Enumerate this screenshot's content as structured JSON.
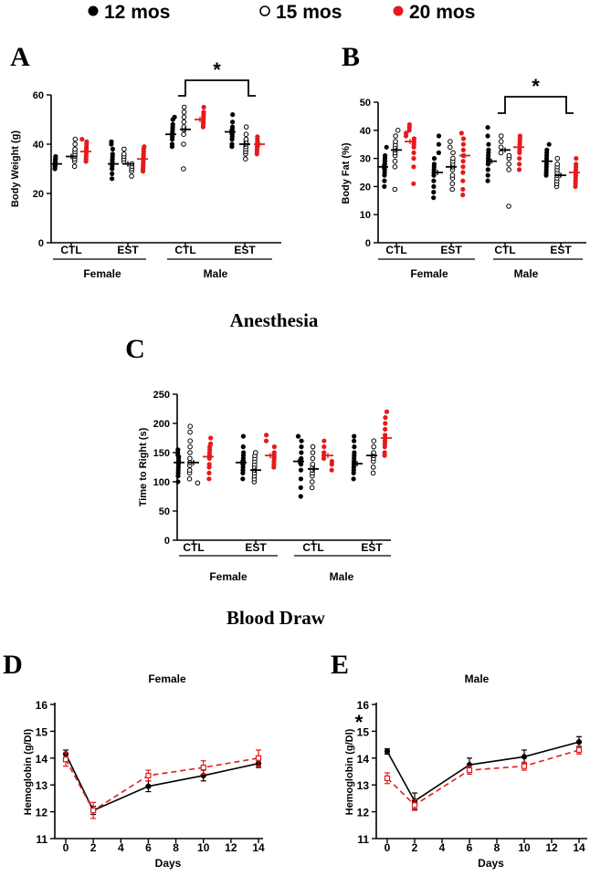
{
  "legend": {
    "items": [
      {
        "label": "12 mos",
        "marker": "filled-circle",
        "color": "#000000"
      },
      {
        "label": "15 mos",
        "marker": "open-circle",
        "color": "#000000"
      },
      {
        "label": "20 mos",
        "marker": "filled-circle",
        "color": "#e41a1c"
      }
    ]
  },
  "section_titles": {
    "anesthesia": "Anesthesia",
    "blood_draw": "Blood Draw"
  },
  "colors": {
    "age12": "#000000",
    "age15": "#000000",
    "age20": "#e41a1c"
  },
  "chart_data": [
    {
      "id": "A",
      "panel_label": "A",
      "type": "scatter",
      "ylabel": "Body  Weight (g)",
      "ylim": [
        0,
        60
      ],
      "yticks": [
        "0",
        "20",
        "40",
        "60"
      ],
      "groups": [
        "Female",
        "Male"
      ],
      "conditions": [
        "CTL",
        "EST"
      ],
      "significance": {
        "symbol": "*",
        "between": [
          "Male CTL",
          "Male EST"
        ]
      },
      "series": [
        {
          "name": "Female CTL",
          "means": [
            32,
            35,
            37
          ],
          "points": [
            [
              30,
              31,
              31,
              32,
              32,
              33,
              33,
              34,
              34,
              35
            ],
            [
              31,
              33,
              34,
              35,
              36,
              37,
              38,
              40,
              42
            ],
            [
              33,
              34,
              35,
              36,
              37,
              38,
              38,
              39,
              40,
              41,
              42
            ]
          ]
        },
        {
          "name": "Female EST",
          "means": [
            32,
            32,
            34
          ],
          "points": [
            [
              26,
              28,
              30,
              31,
              32,
              33,
              34,
              35,
              36,
              38,
              40,
              41
            ],
            [
              27,
              29,
              30,
              31,
              32,
              33,
              34,
              35,
              36,
              38
            ],
            [
              29,
              30,
              31,
              32,
              33,
              34,
              35,
              36,
              37,
              38,
              39
            ]
          ]
        },
        {
          "name": "Male CTL",
          "means": [
            44,
            46,
            50
          ],
          "points": [
            [
              39,
              40,
              42,
              43,
              44,
              45,
              46,
              47,
              48,
              50,
              51
            ],
            [
              30,
              40,
              44,
              46,
              47,
              49,
              51,
              53,
              55
            ],
            [
              47,
              48,
              49,
              50,
              51,
              52,
              53,
              55
            ]
          ]
        },
        {
          "name": "Male EST",
          "means": [
            45,
            40,
            40
          ],
          "points": [
            [
              39,
              40,
              42,
              43,
              44,
              45,
              46,
              47,
              49,
              52
            ],
            [
              34,
              36,
              37,
              38,
              39,
              40,
              41,
              42,
              44,
              47
            ],
            [
              36,
              37,
              38,
              39,
              40,
              41,
              42,
              43
            ]
          ]
        }
      ]
    },
    {
      "id": "B",
      "panel_label": "B",
      "type": "scatter",
      "ylabel": "Body Fat (%)",
      "ylim": [
        0,
        50
      ],
      "yticks": [
        "0",
        "10",
        "20",
        "30",
        "40",
        "50"
      ],
      "groups": [
        "Female",
        "Male"
      ],
      "conditions": [
        "CTL",
        "EST"
      ],
      "significance": {
        "symbol": "*",
        "between": [
          "Male CTL",
          "Male EST"
        ]
      },
      "series": [
        {
          "name": "Female CTL",
          "means": [
            27,
            33,
            36
          ],
          "points": [
            [
              20,
              22,
              24,
              25,
              26,
              27,
              28,
              29,
              30,
              31,
              34
            ],
            [
              19,
              27,
              29,
              31,
              32,
              33,
              34,
              35,
              36,
              38,
              40
            ],
            [
              21,
              27,
              30,
              32,
              34,
              35,
              36,
              37,
              38,
              39,
              40,
              41,
              42
            ]
          ]
        },
        {
          "name": "Female EST",
          "means": [
            25,
            27,
            31
          ],
          "points": [
            [
              16,
              18,
              20,
              22,
              24,
              25,
              26,
              27,
              28,
              30,
              32,
              35,
              38
            ],
            [
              19,
              21,
              23,
              24,
              26,
              27,
              28,
              29,
              30,
              32,
              34,
              36
            ],
            [
              17,
              19,
              22,
              25,
              27,
              29,
              31,
              33,
              35,
              37,
              39
            ]
          ]
        },
        {
          "name": "Male CTL",
          "means": [
            29,
            33,
            34
          ],
          "points": [
            [
              22,
              24,
              26,
              28,
              29,
              30,
              31,
              32,
              33,
              35,
              38,
              41
            ],
            [
              13,
              26,
              28,
              30,
              31,
              32,
              34,
              36,
              38
            ],
            [
              26,
              28,
              30,
              32,
              33,
              34,
              35,
              36,
              37,
              38
            ]
          ]
        },
        {
          "name": "Male EST",
          "means": [
            29,
            24,
            25
          ],
          "points": [
            [
              24,
              25,
              26,
              27,
              28,
              29,
              30,
              31,
              32,
              33,
              35
            ],
            [
              20,
              21,
              22,
              23,
              24,
              25,
              26,
              27,
              28,
              30
            ],
            [
              20,
              21,
              22,
              23,
              24,
              25,
              26,
              27,
              28,
              30
            ]
          ]
        }
      ]
    },
    {
      "id": "C",
      "panel_label": "C",
      "type": "scatter",
      "ylabel": "Time to Right  (s)",
      "ylim": [
        0,
        250
      ],
      "yticks": [
        "0",
        "50",
        "100",
        "150",
        "200",
        "250"
      ],
      "groups": [
        "Female",
        "Male"
      ],
      "conditions": [
        "CTL",
        "EST"
      ],
      "series": [
        {
          "name": "Female CTL",
          "means": [
            133,
            133,
            143
          ],
          "points": [
            [
              100,
              110,
              115,
              120,
              125,
              130,
              133,
              136,
              140,
              143,
              146,
              150,
              155
            ],
            [
              98,
              105,
              115,
              120,
              128,
              133,
              140,
              150,
              160,
              170,
              185,
              195
            ],
            [
              105,
              115,
              125,
              130,
              140,
              143,
              146,
              150,
              155,
              160,
              165,
              175
            ]
          ]
        },
        {
          "name": "Female EST",
          "means": [
            133,
            120,
            145
          ],
          "points": [
            [
              105,
              115,
              120,
              125,
              130,
              133,
              136,
              140,
              145,
              150,
              160,
              178
            ],
            [
              100,
              105,
              110,
              115,
              120,
              125,
              130,
              135,
              140,
              145,
              150
            ],
            [
              125,
              130,
              135,
              140,
              143,
              146,
              150,
              160,
              170,
              180
            ]
          ]
        },
        {
          "name": "Male CTL",
          "means": [
            135,
            122,
            145
          ],
          "points": [
            [
              75,
              90,
              105,
              120,
              130,
              135,
              140,
              150,
              160,
              170,
              178
            ],
            [
              90,
              100,
              110,
              115,
              120,
              125,
              130,
              140,
              150,
              160
            ],
            [
              120,
              130,
              135,
              140,
              145,
              150,
              160,
              170
            ]
          ]
        },
        {
          "name": "Male EST",
          "means": [
            131,
            145,
            175
          ],
          "points": [
            [
              105,
              115,
              120,
              125,
              130,
              135,
              140,
              145,
              150,
              160,
              170,
              178
            ],
            [
              115,
              125,
              135,
              140,
              145,
              150,
              160,
              170
            ],
            [
              145,
              150,
              160,
              165,
              170,
              175,
              180,
              190,
              200,
              210,
              220
            ]
          ]
        }
      ]
    },
    {
      "id": "D",
      "panel_label": "D",
      "type": "line",
      "title": "Female",
      "xlabel": "Days",
      "ylabel": "Hemoglobin (g/Dl)",
      "x": [
        0,
        2,
        6,
        10,
        14
      ],
      "xlim": [
        0,
        14
      ],
      "ylim": [
        11,
        16
      ],
      "xticks": [
        "0",
        "2",
        "4",
        "6",
        "8",
        "10",
        "12",
        "14"
      ],
      "yticks": [
        "11",
        "12",
        "13",
        "14",
        "15",
        "16"
      ],
      "series": [
        {
          "name": "12 mos",
          "color": "#000000",
          "style": "solid",
          "marker": "filled-circle",
          "values": [
            14.15,
            12.05,
            12.95,
            13.35,
            13.8
          ],
          "errors": [
            0.15,
            0.15,
            0.2,
            0.2,
            0.15
          ]
        },
        {
          "name": "20 mos",
          "color": "#e41a1c",
          "style": "dashed",
          "marker": "open-square",
          "values": [
            13.95,
            12.05,
            13.35,
            13.65,
            14.0
          ],
          "errors": [
            0.25,
            0.3,
            0.2,
            0.25,
            0.3
          ]
        }
      ]
    },
    {
      "id": "E",
      "panel_label": "E",
      "type": "line",
      "title": "Male",
      "xlabel": "Days",
      "ylabel": "Hemoglobin (g/Dl)",
      "x": [
        0,
        2,
        6,
        10,
        14
      ],
      "xlim": [
        0,
        14
      ],
      "ylim": [
        11,
        16
      ],
      "xticks": [
        "0",
        "2",
        "4",
        "6",
        "8",
        "10",
        "12",
        "14"
      ],
      "yticks": [
        "11",
        "12",
        "13",
        "14",
        "15",
        "16"
      ],
      "significance": {
        "symbol": "*",
        "at_x": 0
      },
      "series": [
        {
          "name": "12 mos",
          "color": "#000000",
          "style": "solid",
          "marker": "filled-circle",
          "values": [
            14.25,
            12.4,
            13.75,
            14.05,
            14.6
          ],
          "errors": [
            0.1,
            0.3,
            0.25,
            0.25,
            0.2
          ]
        },
        {
          "name": "20 mos",
          "color": "#e41a1c",
          "style": "dashed",
          "marker": "open-square",
          "values": [
            13.25,
            12.25,
            13.55,
            13.7,
            14.3
          ],
          "errors": [
            0.2,
            0.2,
            0.15,
            0.15,
            0.15
          ]
        }
      ]
    }
  ]
}
